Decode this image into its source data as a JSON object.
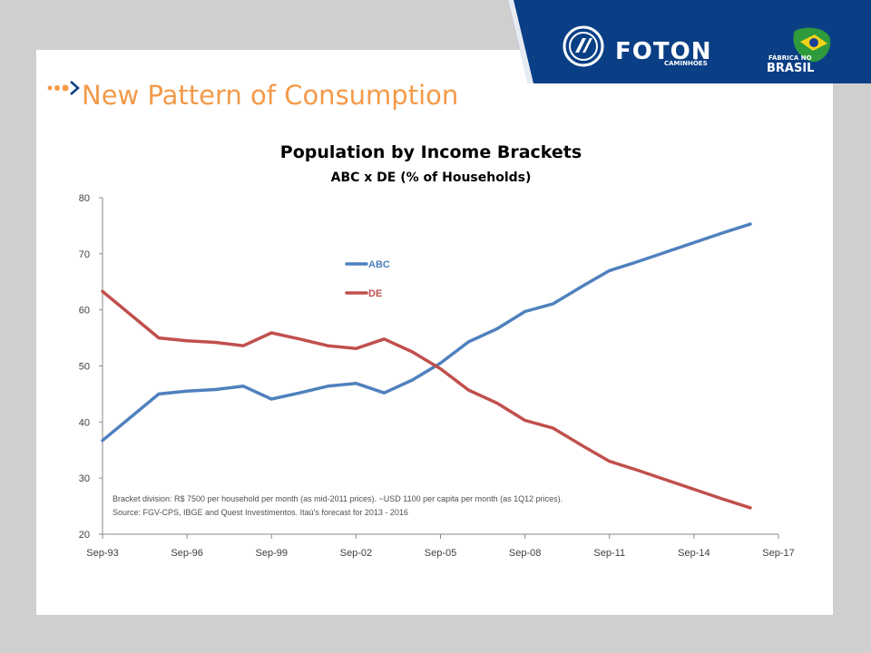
{
  "slide": {
    "title": "New Pattern of Consumption"
  },
  "header": {
    "brand_name": "FOTON",
    "brand_sub": "CAMINHÕES",
    "badge_top": "FÁBRICA NO",
    "badge_main": "BRASIL",
    "banner_color": "#0a3f86",
    "title_color": "#f39a4a"
  },
  "chart_data": {
    "type": "line",
    "title": "Population by Income Brackets",
    "subtitle": "ABC x DE (% of Households)",
    "x": [
      "1993-09",
      "1995-09",
      "1996-09",
      "1997-09",
      "1998-09",
      "1999-09",
      "2000-09",
      "2001-09",
      "2002-09",
      "2003-09",
      "2004-09",
      "2005-09",
      "2006-09",
      "2007-09",
      "2008-09",
      "2009-09",
      "2010-09",
      "2011-09",
      "2012-09",
      "2013-09",
      "2014-09",
      "2015-09",
      "2016-09"
    ],
    "x_ticks": [
      "Sep-93",
      "Sep-96",
      "Sep-99",
      "Sep-02",
      "Sep-05",
      "Sep-08",
      "Sep-11",
      "Sep-14",
      "Sep-17"
    ],
    "ylim": [
      20,
      80
    ],
    "y_ticks": [
      20,
      30,
      40,
      50,
      60,
      70,
      80
    ],
    "series": [
      {
        "name": "ABC",
        "color": "#4f81bd",
        "values": [
          36.7,
          45.0,
          45.5,
          45.8,
          46.4,
          44.1,
          45.2,
          46.4,
          46.9,
          45.2,
          47.5,
          50.5,
          54.3,
          56.6,
          59.7,
          61.1,
          64.1,
          67.0,
          68.6,
          70.3,
          72.0,
          73.7,
          75.3
        ]
      },
      {
        "name": "DE",
        "color": "#c0504d",
        "values": [
          63.3,
          55.0,
          54.5,
          54.2,
          53.6,
          55.9,
          54.8,
          53.6,
          53.1,
          54.8,
          52.5,
          49.5,
          45.7,
          43.4,
          40.3,
          38.9,
          35.9,
          33.0,
          31.4,
          29.7,
          28.0,
          26.3,
          24.7
        ]
      }
    ],
    "legend": "upper-middle",
    "grid": false,
    "notes": [
      "Bracket division: R$ 7500 per household per month  (as mid-2011 prices). ~USD 1100 per capita per month (as 1Q12 prices).",
      "Source: FGV-CPS, IBGE and Quest Investimentos. Itaú's forecast for 2013 - 2016"
    ]
  }
}
